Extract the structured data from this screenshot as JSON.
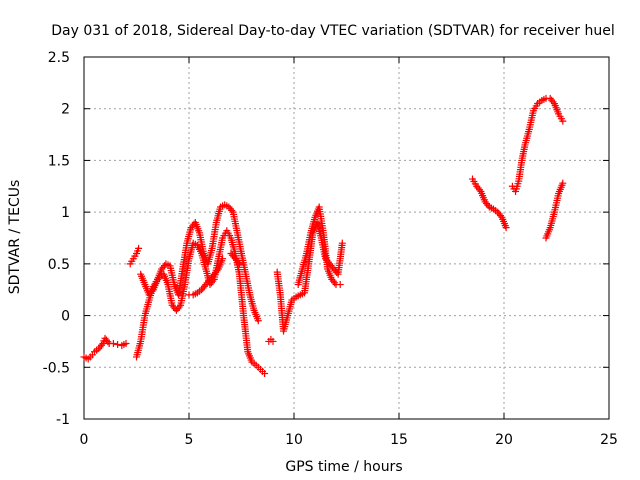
{
  "chart_data": {
    "type": "scatter",
    "title": "Day 031 of 2018, Sidereal Day-to-day VTEC variation (SDTVAR) for receiver huel",
    "xlabel": "GPS time / hours",
    "ylabel": "SDTVAR / TECUs",
    "xlim": [
      0,
      25
    ],
    "ylim": [
      -1,
      2.5
    ],
    "xticks": [
      0,
      5,
      10,
      15,
      20,
      25
    ],
    "xtick_labels": [
      "0",
      "5",
      "10",
      "15",
      "20",
      "25"
    ],
    "yticks": [
      -1,
      -0.5,
      0,
      0.5,
      1,
      1.5,
      2,
      2.5
    ],
    "ytick_labels": [
      "-1",
      "-0.5",
      "0",
      "0.5",
      "1",
      "1.5",
      "2",
      "2.5"
    ],
    "grid": true,
    "marker": "+",
    "color": "#ff0000",
    "series": [
      {
        "segments": [
          {
            "x": [
              0.0,
              0.2,
              0.4,
              0.5,
              0.7,
              0.9,
              1.0,
              1.2,
              1.4,
              1.6,
              1.8,
              2.0
            ],
            "y": [
              -0.4,
              -0.42,
              -0.38,
              -0.35,
              -0.32,
              -0.27,
              -0.22,
              -0.27,
              -0.27,
              -0.28,
              -0.29,
              -0.27
            ]
          },
          {
            "x": [
              2.2,
              2.35,
              2.5,
              2.6
            ],
            "y": [
              0.5,
              0.55,
              0.6,
              0.65
            ]
          },
          {
            "x": [
              2.5,
              2.7,
              2.9,
              3.1,
              3.3,
              3.5,
              3.8,
              4.0,
              4.2,
              4.4,
              4.6,
              4.8,
              5.0,
              5.2,
              5.4,
              5.6,
              5.8,
              6.0,
              6.2,
              6.4,
              6.6,
              6.8,
              7.0,
              7.2,
              7.4,
              7.6,
              7.8,
              8.0,
              8.2,
              8.4,
              8.6
            ],
            "y": [
              -0.4,
              -0.25,
              0.0,
              0.15,
              0.28,
              0.35,
              0.4,
              0.3,
              0.1,
              0.05,
              0.1,
              0.3,
              0.55,
              0.7,
              0.68,
              0.6,
              0.45,
              0.3,
              0.35,
              0.55,
              0.75,
              0.82,
              0.75,
              0.6,
              0.4,
              0.0,
              -0.35,
              -0.45,
              -0.48,
              -0.52,
              -0.56
            ]
          },
          {
            "x": [
              2.7,
              2.9,
              3.1,
              3.3,
              3.5,
              3.7,
              3.9,
              4.1,
              4.3,
              4.5,
              4.7,
              4.9,
              5.1,
              5.3,
              5.5,
              5.7,
              5.9,
              6.1,
              6.3,
              6.5,
              6.7,
              6.9,
              7.1,
              7.3,
              7.5,
              7.7,
              7.9,
              8.1,
              8.3
            ],
            "y": [
              0.4,
              0.3,
              0.2,
              0.25,
              0.35,
              0.45,
              0.5,
              0.48,
              0.3,
              0.2,
              0.45,
              0.7,
              0.85,
              0.9,
              0.8,
              0.6,
              0.5,
              0.65,
              0.9,
              1.05,
              1.07,
              1.05,
              1.0,
              0.8,
              0.6,
              0.4,
              0.2,
              0.05,
              -0.05
            ]
          },
          {
            "x": [
              5.0,
              5.2,
              5.4,
              5.6,
              5.8,
              6.0,
              6.2,
              6.4,
              6.6
            ],
            "y": [
              0.2,
              0.2,
              0.22,
              0.25,
              0.3,
              0.35,
              0.4,
              0.45,
              0.55
            ]
          },
          {
            "x": [
              7.0,
              7.2,
              7.4
            ],
            "y": [
              0.6,
              0.55,
              0.5
            ]
          },
          {
            "x": [
              8.8,
              8.9,
              9.0
            ],
            "y": [
              -0.25,
              -0.23,
              -0.25
            ]
          },
          {
            "x": [
              9.2,
              9.35,
              9.5,
              9.7,
              9.9,
              10.1,
              10.3,
              10.5,
              10.7,
              10.9,
              11.1,
              11.3,
              11.5,
              11.7,
              11.9,
              12.1,
              12.3
            ],
            "y": [
              0.42,
              0.2,
              -0.15,
              0.0,
              0.15,
              0.18,
              0.2,
              0.22,
              0.5,
              0.8,
              0.9,
              0.75,
              0.55,
              0.5,
              0.45,
              0.4,
              0.7
            ]
          },
          {
            "x": [
              10.2,
              10.4,
              10.6,
              10.8,
              11.0,
              11.2,
              11.4,
              11.6,
              11.8,
              12.0,
              12.2
            ],
            "y": [
              0.3,
              0.45,
              0.6,
              0.8,
              0.95,
              1.05,
              0.8,
              0.45,
              0.35,
              0.3,
              0.3
            ]
          },
          {
            "x": [
              18.5,
              18.7,
              18.9,
              19.1,
              19.3,
              19.5,
              19.7,
              19.9,
              20.1
            ],
            "y": [
              1.32,
              1.25,
              1.2,
              1.1,
              1.05,
              1.03,
              1.0,
              0.95,
              0.85
            ]
          },
          {
            "x": [
              20.4,
              20.55,
              20.7,
              20.85,
              21.0,
              21.2,
              21.4,
              21.6,
              21.8,
              22.0,
              22.2,
              22.4,
              22.6,
              22.8
            ],
            "y": [
              1.25,
              1.2,
              1.3,
              1.5,
              1.65,
              1.8,
              1.98,
              2.05,
              2.08,
              2.1,
              2.1,
              2.05,
              1.95,
              1.88
            ]
          },
          {
            "x": [
              22.0,
              22.2,
              22.4,
              22.6,
              22.8
            ],
            "y": [
              0.75,
              0.85,
              1.0,
              1.18,
              1.28
            ]
          }
        ]
      }
    ]
  }
}
